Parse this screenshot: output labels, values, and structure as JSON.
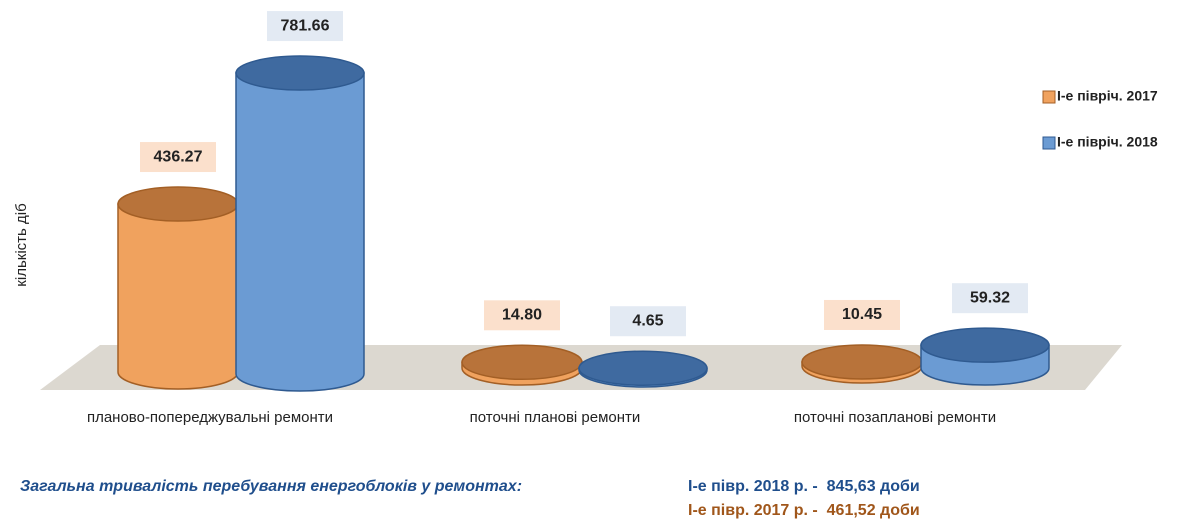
{
  "chart_data": {
    "type": "cylinder",
    "y_label": "кількість діб",
    "categories": [
      "планово-попереджувальні ремонти",
      "поточні планові ремонти",
      "поточні позапланові ремонти"
    ],
    "series": [
      {
        "name": "І-е півріч. 2017",
        "color": "#f0a25e",
        "values": [
          436.27,
          14.8,
          10.45
        ],
        "value_labels": [
          "436.27",
          "14.80",
          "10.45"
        ]
      },
      {
        "name": "І-е півріч. 2018",
        "color": "#6b9bd3",
        "values": [
          781.66,
          4.65,
          59.32
        ]
      }
    ],
    "legend": "right"
  },
  "footer": {
    "label": "Загальна тривалість перебування енергоблоків у ремонтах",
    "lines": [
      "І-е півр. 2018 р. -  845,63 доби",
      "І-е півр. 2017 р. -  461,52 доби"
    ]
  }
}
